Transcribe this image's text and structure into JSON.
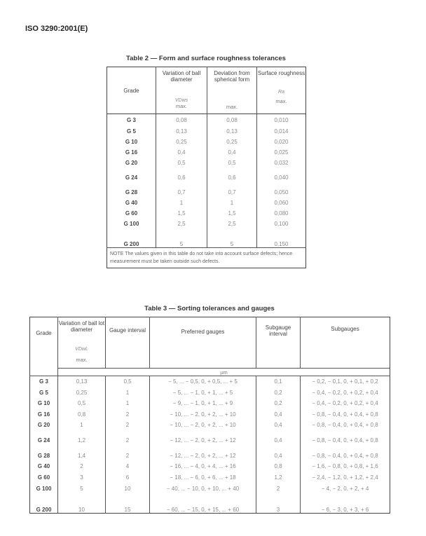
{
  "header": {
    "doc_id": "ISO 3290:2001(E)"
  },
  "table2": {
    "caption": "Table 2 — Form and surface roughness tolerances",
    "columns": [
      {
        "label": "Grade"
      },
      {
        "label": "Variation of ball diameter",
        "symbol": "VDws",
        "unit": "max."
      },
      {
        "label": "Deviation from spherical form",
        "unit": "max."
      },
      {
        "label": "Surface roughness",
        "symbol": "Ra",
        "unit": "max."
      }
    ],
    "rows": [
      [
        "G 3",
        "0,08",
        "0,08",
        "0,010"
      ],
      [
        "G 5",
        "0,13",
        "0,13",
        "0,014"
      ],
      [
        "G 10",
        "0,25",
        "0,25",
        "0,020"
      ],
      [
        "G 16",
        "0,4",
        "0,4",
        "0,025"
      ],
      [
        "G 20",
        "0,5",
        "0,5",
        "0,032"
      ],
      [
        "G 24",
        "0,6",
        "0,6",
        "0,040"
      ],
      [
        "G 28",
        "0,7",
        "0,7",
        "0,050"
      ],
      [
        "G 40",
        "1",
        "1",
        "0,060"
      ],
      [
        "G 60",
        "1,5",
        "1,5",
        "0,080"
      ],
      [
        "G 100",
        "2,5",
        "2,5",
        "0,100"
      ],
      [
        "G 200",
        "5",
        "5",
        "0,150"
      ]
    ],
    "note": "NOTE        The values given in this table do not take into account surface defects; hence measurement must be taken outside such defects."
  },
  "table3": {
    "caption": "Table 3 — Sorting tolerances and gauges",
    "columns": [
      {
        "label": "Grade"
      },
      {
        "label": "Variation of ball lot diameter",
        "symbol": "VDwL",
        "unit": "max."
      },
      {
        "label": "Gauge interval"
      },
      {
        "label": "Preferred gauges"
      },
      {
        "label": "Subgauge interval"
      },
      {
        "label": "Subgauges"
      }
    ],
    "unit_row": "µm",
    "rows": [
      [
        "G 3",
        "0,13",
        "0,5",
        "− 5, ... − 0,5,  0,  + 0,5, ... + 5",
        "0,1",
        "− 0,2, − 0,1,  0, + 0,1, + 0,2"
      ],
      [
        "G 5",
        "0,25",
        "1",
        "− 5, ... − 1,  0,  + 1, ... + 5",
        "0,2",
        "− 0,4, − 0,2,  0, + 0,2, + 0,4"
      ],
      [
        "G 10",
        "0,5",
        "1",
        "− 9, ... − 1,  0,  + 1, ... + 9",
        "0,2",
        "− 0,4, − 0,2,  0, + 0,2, + 0,4"
      ],
      [
        "G 16",
        "0,8",
        "2",
        "− 10, ... − 2,  0,  + 2, ... + 10",
        "0,4",
        "− 0,8, − 0,4,  0, + 0,4, + 0,8"
      ],
      [
        "G 20",
        "1",
        "2",
        "− 10, ... − 2,  0,  + 2, ... + 10",
        "0,4",
        "− 0,8, − 0,4,  0, + 0,4, + 0,8"
      ],
      [
        "G 24",
        "1,2",
        "2",
        "− 12, ... − 2,  0,  + 2, ... + 12",
        "0,4",
        "− 0,8, − 0,4,  0, + 0,4, + 0,8"
      ],
      [
        "G 28",
        "1,4",
        "2",
        "− 12, ... − 2,  0,  + 2, ... + 12",
        "0,4",
        "− 0,8, − 0,4,  0, + 0,4, + 0,8"
      ],
      [
        "G 40",
        "2",
        "4",
        "− 16, ... − 4,  0,  + 4, ... + 16",
        "0,8",
        "− 1,6, − 0,8,  0, + 0,8, + 1,6"
      ],
      [
        "G 60",
        "3",
        "6",
        "− 18, ... − 6,  0,  + 6, ... + 18",
        "1,2",
        "− 2,4, − 1,2,  0, + 1,2, + 2,4"
      ],
      [
        "G 100",
        "5",
        "10",
        "− 40, ... − 10,  0,  + 10, ... + 40",
        "2",
        "− 4,  − 2,  0, + 2,  + 4"
      ],
      [
        "G 200",
        "10",
        "15",
        "− 60, ... − 15,  0,  + 15, ... + 60",
        "3",
        "− 6,  − 3,  0, + 3,  + 6"
      ]
    ]
  }
}
